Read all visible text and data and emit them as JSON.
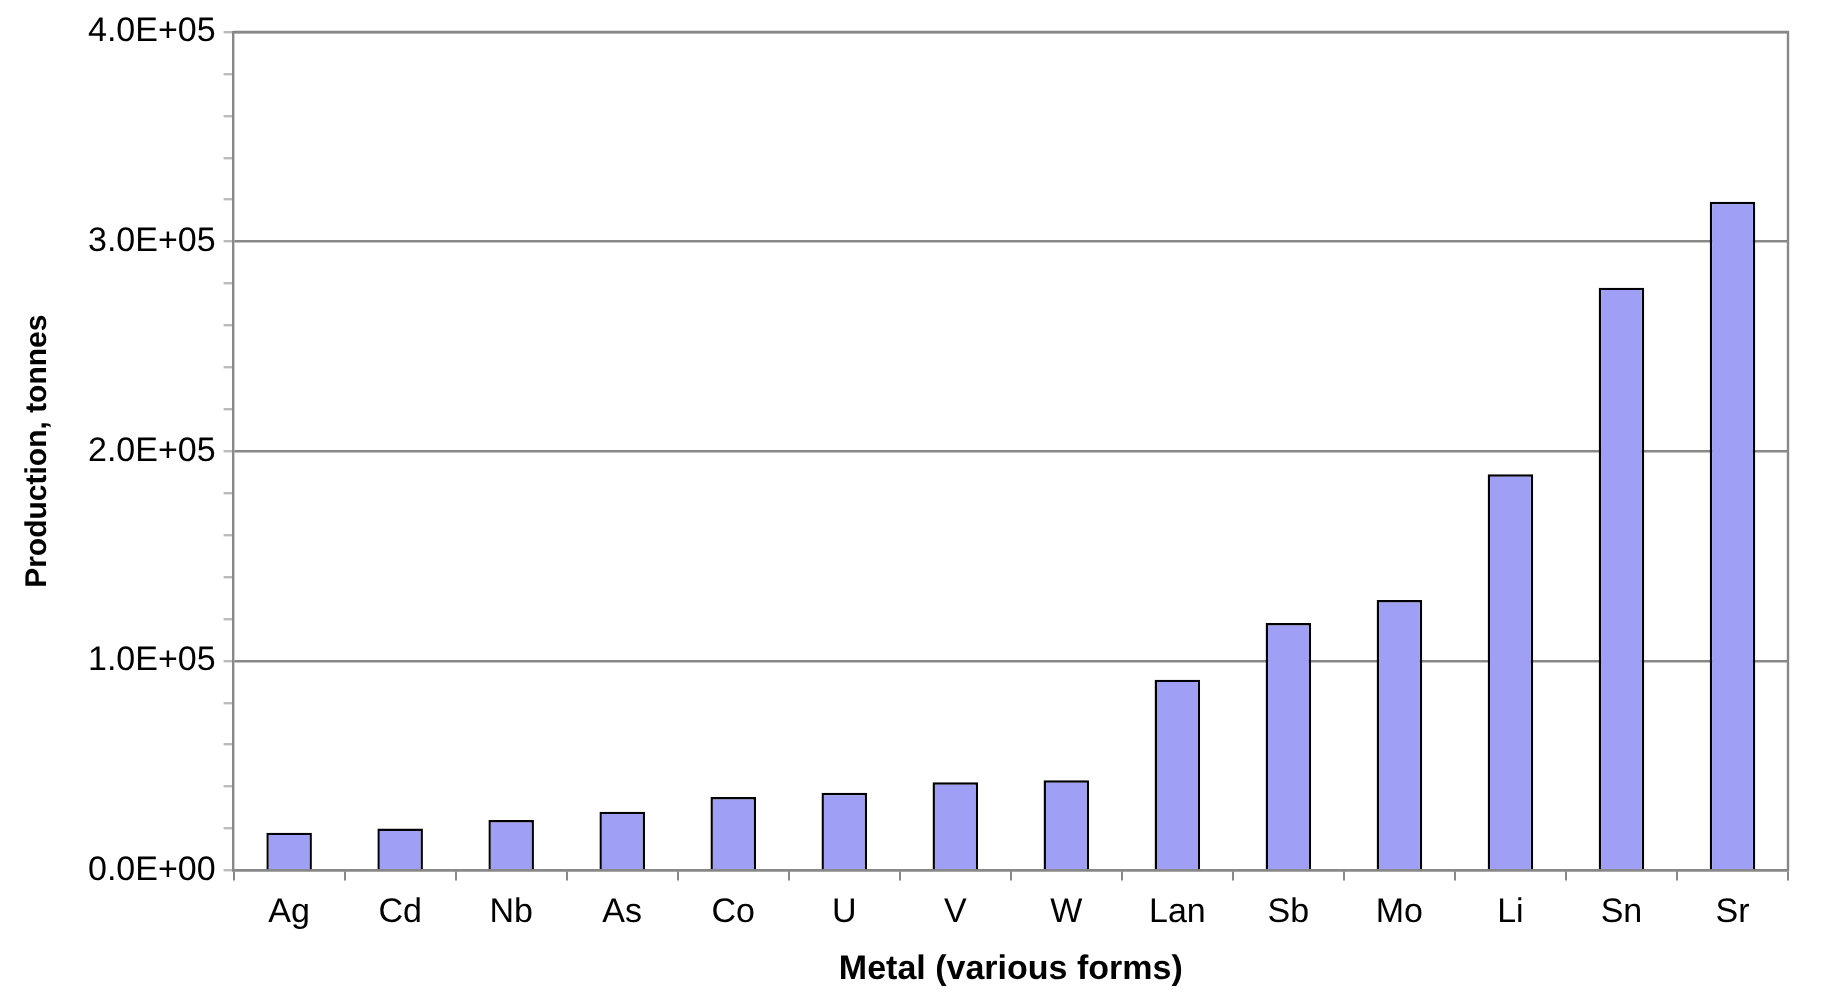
{
  "chart_data": {
    "type": "bar",
    "xlabel": "Metal (various forms)",
    "ylabel": "Production, tonnes",
    "categories": [
      "Ag",
      "Cd",
      "Nb",
      "As",
      "Co",
      "U",
      "V",
      "W",
      "Lan",
      "Sb",
      "Mo",
      "Li",
      "Sn",
      "Sr"
    ],
    "values": [
      18000,
      20000,
      24000,
      28000,
      35000,
      37000,
      42000,
      43000,
      91000,
      118000,
      129000,
      189000,
      278000,
      319000
    ],
    "color": "#9f9ff5",
    "ylim": [
      0,
      400000
    ],
    "yticks": [
      {
        "value": 0,
        "label": "0.0E+00"
      },
      {
        "value": 20000,
        "label": null
      },
      {
        "value": 40000,
        "label": null
      },
      {
        "value": 60000,
        "label": null
      },
      {
        "value": 80000,
        "label": null
      },
      {
        "value": 100000,
        "label": "1.0E+05"
      },
      {
        "value": 120000,
        "label": null
      },
      {
        "value": 140000,
        "label": null
      },
      {
        "value": 160000,
        "label": null
      },
      {
        "value": 180000,
        "label": null
      },
      {
        "value": 200000,
        "label": "2.0E+05"
      },
      {
        "value": 220000,
        "label": null
      },
      {
        "value": 240000,
        "label": null
      },
      {
        "value": 260000,
        "label": null
      },
      {
        "value": 280000,
        "label": null
      },
      {
        "value": 300000,
        "label": "3.0E+05"
      },
      {
        "value": 320000,
        "label": null
      },
      {
        "value": 340000,
        "label": null
      },
      {
        "value": 360000,
        "label": null
      },
      {
        "value": 380000,
        "label": null
      },
      {
        "value": 400000,
        "label": "4.0E+05"
      }
    ],
    "grid": "y",
    "legend": false
  }
}
